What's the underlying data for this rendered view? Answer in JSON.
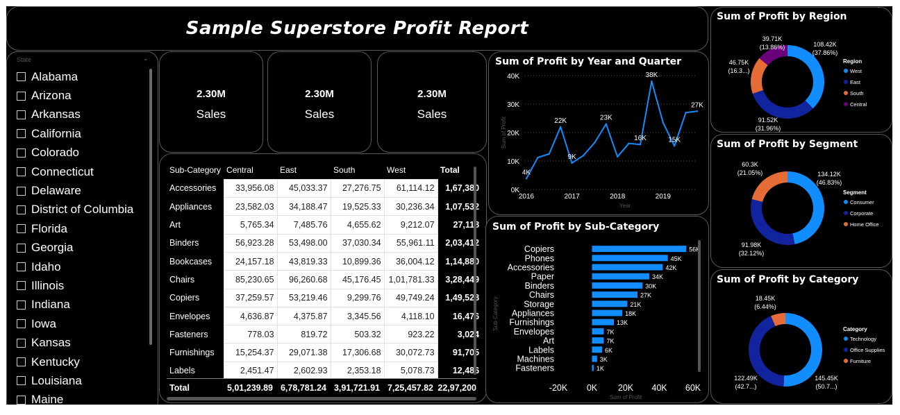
{
  "report_title": "Sample Superstore Profit Report",
  "slicer": {
    "header": "State",
    "items": [
      "Alabama",
      "Arizona",
      "Arkansas",
      "California",
      "Colorado",
      "Connecticut",
      "Delaware",
      "District of Columbia",
      "Florida",
      "Georgia",
      "Idaho",
      "Illinois",
      "Indiana",
      "Iowa",
      "Kansas",
      "Kentucky",
      "Louisiana",
      "Maine"
    ]
  },
  "kpis": [
    {
      "value": "2.30M",
      "label": "Sales"
    },
    {
      "value": "2.30M",
      "label": "Sales"
    },
    {
      "value": "2.30M",
      "label": "Sales"
    }
  ],
  "matrix": {
    "headers": [
      "Sub-Category",
      "Central",
      "East",
      "South",
      "West",
      "Total"
    ],
    "rows": [
      [
        "Accessories",
        "33,956.08",
        "45,033.37",
        "27,276.75",
        "61,114.12",
        "1,67,380"
      ],
      [
        "Appliances",
        "23,582.03",
        "34,188.47",
        "19,525.33",
        "30,236.34",
        "1,07,532"
      ],
      [
        "Art",
        "5,765.34",
        "7,485.76",
        "4,655.62",
        "9,212.07",
        "27,118"
      ],
      [
        "Binders",
        "56,923.28",
        "53,498.00",
        "37,030.34",
        "55,961.11",
        "2,03,412"
      ],
      [
        "Bookcases",
        "24,157.18",
        "43,819.33",
        "10,899.36",
        "36,004.12",
        "1,14,880"
      ],
      [
        "Chairs",
        "85,230.65",
        "96,260.68",
        "45,176.45",
        "1,01,781.33",
        "3,28,449"
      ],
      [
        "Copiers",
        "37,259.57",
        "53,219.46",
        "9,299.76",
        "49,749.24",
        "1,49,528"
      ],
      [
        "Envelopes",
        "4,636.87",
        "4,375.87",
        "3,345.56",
        "4,118.10",
        "16,476"
      ],
      [
        "Fasteners",
        "778.03",
        "819.72",
        "503.32",
        "923.22",
        "3,024"
      ],
      [
        "Furnishings",
        "15,254.37",
        "29,071.38",
        "17,306.68",
        "30,072.73",
        "91,705"
      ],
      [
        "Labels",
        "2,451.47",
        "2,602.93",
        "2,353.18",
        "5,078.73",
        "12,486"
      ]
    ],
    "total": [
      "Total",
      "5,01,239.89",
      "6,78,781.24",
      "3,91,721.91",
      "7,25,457.82",
      "22,97,200"
    ]
  },
  "year_quarter_chart": {
    "title": "Sum of Profit by Year and Quarter",
    "xlabel": "Year",
    "ylabel": "Sum of Profit",
    "y_ticks": [
      "0K",
      "10K",
      "20K",
      "30K",
      "40K"
    ],
    "x_ticks": [
      "2016",
      "2017",
      "2018",
      "2019"
    ]
  },
  "subcat_chart": {
    "title": "Sum of Profit by Sub-Category",
    "xlabel": "Sum of Profit",
    "ylabel": "Sub-Category",
    "x_ticks": [
      "-20K",
      "0K",
      "20K",
      "40K",
      "60K"
    ]
  },
  "region_chart": {
    "title": "Sum of Profit by Region",
    "legend_title": "Region",
    "labels": [
      {
        "value": "108.42K",
        "pct": "(37.86%)"
      },
      {
        "value": "91.52K",
        "pct": "(31.96%)"
      },
      {
        "value": "46.75K",
        "pct": "(16.3...)"
      },
      {
        "value": "39.71K",
        "pct": "(13.86%)"
      }
    ]
  },
  "segment_chart": {
    "title": "Sum of Profit by Segment",
    "legend_title": "Segment",
    "labels": [
      {
        "value": "134.12K",
        "pct": "(46.83%)"
      },
      {
        "value": "91.98K",
        "pct": "(32.12%)"
      },
      {
        "value": "60.3K",
        "pct": "(21.05%)"
      }
    ]
  },
  "category_chart": {
    "title": "Sum of Profit by Category",
    "legend_title": "Category",
    "labels": [
      {
        "value": "145.45K",
        "pct": "(50.7...)"
      },
      {
        "value": "122.49K",
        "pct": "(42.7...)"
      },
      {
        "value": "18.45K",
        "pct": "(6.44%)"
      }
    ]
  },
  "chart_data": [
    {
      "type": "line",
      "title": "Sum of Profit by Year and Quarter",
      "xlabel": "Year",
      "ylabel": "Sum of Profit",
      "x": [
        "2016 Q1",
        "2016 Q2",
        "2016 Q3",
        "2016 Q4",
        "2017 Q1",
        "2017 Q2",
        "2017 Q3",
        "2017 Q4",
        "2018 Q1",
        "2018 Q2",
        "2018 Q3",
        "2018 Q4",
        "2019 Q1",
        "2019 Q2",
        "2019 Q3",
        "2019 Q4"
      ],
      "values": [
        3.8,
        11.2,
        12.5,
        22.0,
        9.3,
        11.9,
        16.5,
        23.0,
        11.5,
        16.2,
        15.8,
        38.0,
        23.5,
        15.3,
        27.0,
        27.5
      ],
      "value_labels": [
        {
          "index": 0,
          "text": "4K"
        },
        {
          "index": 3,
          "text": "22K"
        },
        {
          "index": 4,
          "text": "9K"
        },
        {
          "index": 7,
          "text": "23K"
        },
        {
          "index": 10,
          "text": "16K"
        },
        {
          "index": 11,
          "text": "38K"
        },
        {
          "index": 13,
          "text": "15K"
        },
        {
          "index": 15,
          "text": "27K"
        }
      ],
      "ylim": [
        0,
        40
      ],
      "color": "#118dff",
      "grid": true
    },
    {
      "type": "bar",
      "orientation": "horizontal",
      "title": "Sum of Profit by Sub-Category",
      "xlabel": "Sum of Profit",
      "ylabel": "Sub-Category",
      "categories": [
        "Copiers",
        "Phones",
        "Accessories",
        "Paper",
        "Binders",
        "Chairs",
        "Storage",
        "Appliances",
        "Furnishings",
        "Envelopes",
        "Art",
        "Labels",
        "Machines",
        "Fasteners"
      ],
      "values": [
        56,
        45,
        42,
        34,
        30,
        27,
        21,
        18,
        13,
        7,
        7,
        6,
        3,
        1
      ],
      "value_labels": [
        "56K",
        "45K",
        "42K",
        "34K",
        "30K",
        "27K",
        "21K",
        "18K",
        "13K",
        "7K",
        "7K",
        "6K",
        "3K",
        "1K"
      ],
      "xlim": [
        -20,
        60
      ],
      "color": "#118dff"
    },
    {
      "type": "pie",
      "title": "Sum of Profit by Region",
      "categories": [
        "West",
        "East",
        "South",
        "Central"
      ],
      "values": [
        108.42,
        91.52,
        46.75,
        39.71
      ],
      "colors": [
        "#118dff",
        "#12239e",
        "#e66c37",
        "#6b007b"
      ],
      "legend": "right"
    },
    {
      "type": "pie",
      "title": "Sum of Profit by Segment",
      "categories": [
        "Consumer",
        "Corporate",
        "Home Office"
      ],
      "values": [
        134.12,
        91.98,
        60.3
      ],
      "colors": [
        "#118dff",
        "#12239e",
        "#e66c37"
      ],
      "legend": "right"
    },
    {
      "type": "pie",
      "title": "Sum of Profit by Category",
      "categories": [
        "Technology",
        "Office Supplies",
        "Furniture"
      ],
      "values": [
        145.45,
        122.49,
        18.45
      ],
      "colors": [
        "#118dff",
        "#12239e",
        "#e66c37"
      ],
      "legend": "right"
    }
  ]
}
